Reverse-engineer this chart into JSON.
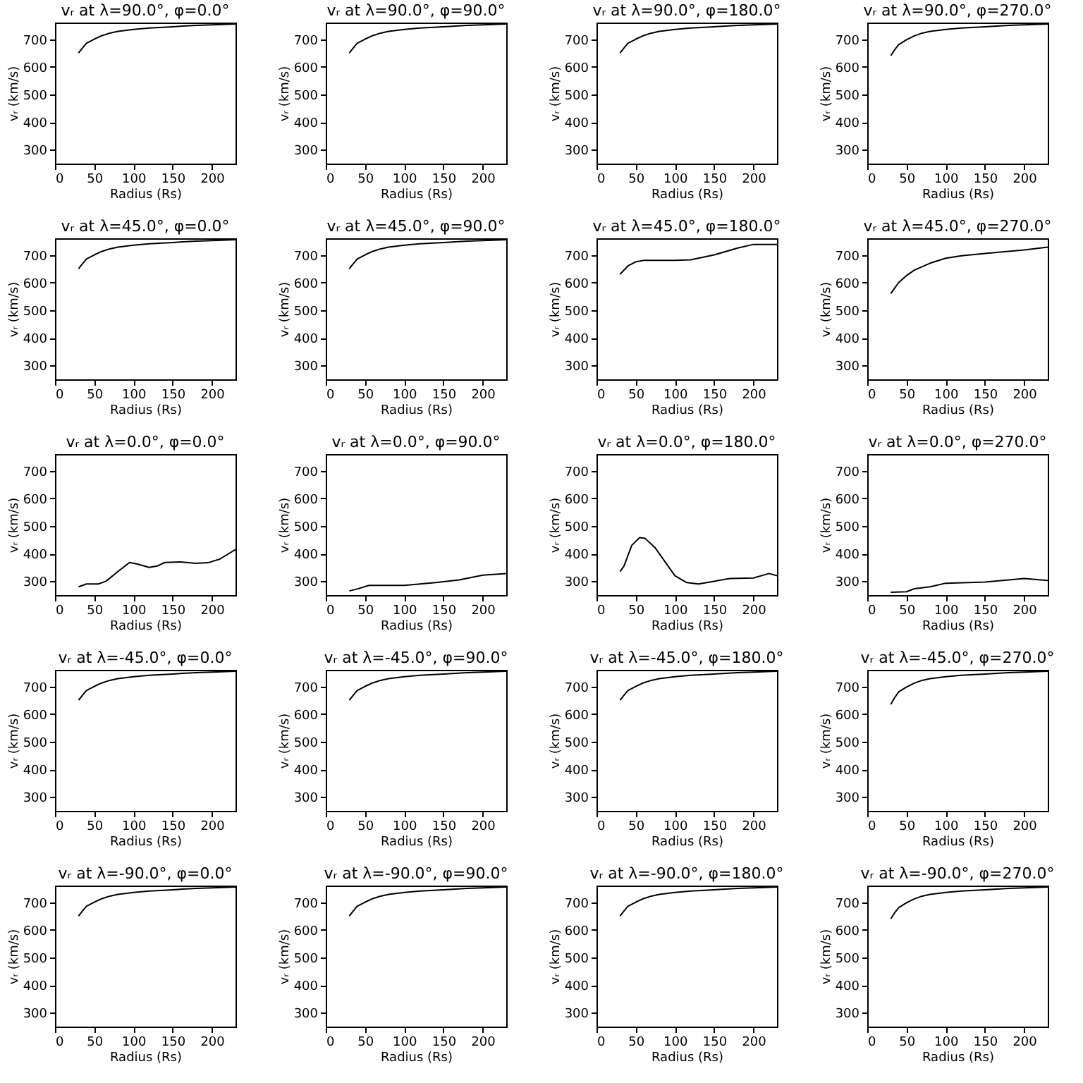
{
  "chart_data": [
    {
      "type": "line",
      "title": "vᵣ at λ=90.0°, φ=0.0°",
      "xlabel": "Radius (Rs)",
      "ylabel": "vᵣ (km/s)",
      "xlim": [
        0,
        230
      ],
      "ylim": [
        250,
        760
      ],
      "xticks": [
        0,
        50,
        100,
        150,
        200
      ],
      "yticks": [
        300,
        400,
        500,
        600,
        700
      ],
      "color": "#000000",
      "x": [
        30,
        35,
        40,
        50,
        60,
        70,
        80,
        100,
        120,
        150,
        180,
        200,
        230
      ],
      "values": [
        650,
        668,
        685,
        700,
        713,
        722,
        728,
        735,
        740,
        745,
        750,
        752,
        755
      ]
    },
    {
      "type": "line",
      "title": "vᵣ at λ=90.0°, φ=90.0°",
      "xlabel": "Radius (Rs)",
      "ylabel": "vᵣ (km/s)",
      "xlim": [
        0,
        230
      ],
      "ylim": [
        250,
        760
      ],
      "xticks": [
        0,
        50,
        100,
        150,
        200
      ],
      "yticks": [
        300,
        400,
        500,
        600,
        700
      ],
      "color": "#000000",
      "x": [
        30,
        35,
        40,
        50,
        60,
        70,
        80,
        100,
        120,
        150,
        180,
        200,
        230
      ],
      "values": [
        650,
        668,
        685,
        700,
        713,
        722,
        728,
        735,
        740,
        745,
        750,
        752,
        755
      ]
    },
    {
      "type": "line",
      "title": "vᵣ at λ=90.0°, φ=180.0°",
      "xlabel": "Radius (Rs)",
      "ylabel": "vᵣ (km/s)",
      "xlim": [
        0,
        230
      ],
      "ylim": [
        250,
        760
      ],
      "xticks": [
        0,
        50,
        100,
        150,
        200
      ],
      "yticks": [
        300,
        400,
        500,
        600,
        700
      ],
      "color": "#000000",
      "x": [
        30,
        35,
        40,
        50,
        60,
        70,
        80,
        100,
        120,
        150,
        180,
        200,
        230
      ],
      "values": [
        650,
        668,
        685,
        700,
        713,
        722,
        728,
        735,
        740,
        745,
        750,
        752,
        755
      ]
    },
    {
      "type": "line",
      "title": "vᵣ at λ=90.0°, φ=270.0°",
      "xlabel": "Radius (Rs)",
      "ylabel": "vᵣ (km/s)",
      "xlim": [
        0,
        230
      ],
      "ylim": [
        250,
        760
      ],
      "xticks": [
        0,
        50,
        100,
        150,
        200
      ],
      "yticks": [
        300,
        400,
        500,
        600,
        700
      ],
      "color": "#000000",
      "x": [
        30,
        35,
        40,
        50,
        60,
        70,
        80,
        100,
        120,
        150,
        180,
        200,
        230
      ],
      "values": [
        640,
        662,
        680,
        698,
        712,
        722,
        728,
        735,
        740,
        745,
        750,
        752,
        755
      ]
    },
    {
      "type": "line",
      "title": "vᵣ at λ=45.0°, φ=0.0°",
      "xlabel": "Radius (Rs)",
      "ylabel": "vᵣ (km/s)",
      "xlim": [
        0,
        230
      ],
      "ylim": [
        250,
        760
      ],
      "xticks": [
        0,
        50,
        100,
        150,
        200
      ],
      "yticks": [
        300,
        400,
        500,
        600,
        700
      ],
      "color": "#000000",
      "x": [
        30,
        35,
        40,
        50,
        60,
        70,
        80,
        100,
        120,
        150,
        180,
        200,
        230
      ],
      "values": [
        650,
        668,
        685,
        700,
        713,
        722,
        728,
        735,
        740,
        745,
        750,
        752,
        755
      ]
    },
    {
      "type": "line",
      "title": "vᵣ at λ=45.0°, φ=90.0°",
      "xlabel": "Radius (Rs)",
      "ylabel": "vᵣ (km/s)",
      "xlim": [
        0,
        230
      ],
      "ylim": [
        250,
        760
      ],
      "xticks": [
        0,
        50,
        100,
        150,
        200
      ],
      "yticks": [
        300,
        400,
        500,
        600,
        700
      ],
      "color": "#000000",
      "x": [
        30,
        35,
        40,
        50,
        60,
        70,
        80,
        100,
        120,
        150,
        180,
        200,
        230
      ],
      "values": [
        650,
        668,
        685,
        700,
        713,
        722,
        728,
        735,
        740,
        745,
        750,
        752,
        755
      ]
    },
    {
      "type": "line",
      "title": "vᵣ at λ=45.0°, φ=180.0°",
      "xlabel": "Radius (Rs)",
      "ylabel": "vᵣ (km/s)",
      "xlim": [
        0,
        230
      ],
      "ylim": [
        250,
        760
      ],
      "xticks": [
        0,
        50,
        100,
        150,
        200
      ],
      "yticks": [
        300,
        400,
        500,
        600,
        700
      ],
      "color": "#000000",
      "x": [
        30,
        40,
        50,
        60,
        80,
        100,
        120,
        150,
        180,
        200,
        230
      ],
      "values": [
        630,
        660,
        675,
        680,
        680,
        680,
        682,
        700,
        725,
        738,
        738
      ]
    },
    {
      "type": "line",
      "title": "vᵣ at λ=45.0°, φ=270.0°",
      "xlabel": "Radius (Rs)",
      "ylabel": "vᵣ (km/s)",
      "xlim": [
        0,
        230
      ],
      "ylim": [
        250,
        760
      ],
      "xticks": [
        0,
        50,
        100,
        150,
        200
      ],
      "yticks": [
        300,
        400,
        500,
        600,
        700
      ],
      "color": "#000000",
      "x": [
        30,
        40,
        50,
        60,
        80,
        100,
        120,
        150,
        200,
        230
      ],
      "values": [
        560,
        600,
        625,
        645,
        670,
        688,
        697,
        705,
        718,
        728
      ]
    },
    {
      "type": "line",
      "title": "vᵣ at λ=0.0°, φ=0.0°",
      "xlabel": "Radius (Rs)",
      "ylabel": "vᵣ (km/s)",
      "xlim": [
        0,
        230
      ],
      "ylim": [
        250,
        760
      ],
      "xticks": [
        0,
        50,
        100,
        150,
        200
      ],
      "yticks": [
        300,
        400,
        500,
        600,
        700
      ],
      "color": "#000000",
      "x": [
        30,
        40,
        55,
        65,
        80,
        95,
        105,
        120,
        130,
        140,
        160,
        180,
        195,
        210,
        230
      ],
      "values": [
        280,
        290,
        290,
        300,
        335,
        368,
        362,
        350,
        355,
        368,
        370,
        365,
        367,
        380,
        415
      ]
    },
    {
      "type": "line",
      "title": "vᵣ at λ=0.0°, φ=90.0°",
      "xlabel": "Radius (Rs)",
      "ylabel": "vᵣ (km/s)",
      "xlim": [
        0,
        230
      ],
      "ylim": [
        250,
        760
      ],
      "xticks": [
        0,
        50,
        100,
        150,
        200
      ],
      "yticks": [
        300,
        400,
        500,
        600,
        700
      ],
      "color": "#000000",
      "x": [
        30,
        40,
        55,
        100,
        140,
        170,
        200,
        230
      ],
      "values": [
        265,
        272,
        285,
        285,
        295,
        305,
        322,
        328
      ]
    },
    {
      "type": "line",
      "title": "vᵣ at λ=0.0°, φ=180.0°",
      "xlabel": "Radius (Rs)",
      "ylabel": "vᵣ (km/s)",
      "xlim": [
        0,
        230
      ],
      "ylim": [
        250,
        760
      ],
      "xticks": [
        0,
        50,
        100,
        150,
        200
      ],
      "yticks": [
        300,
        400,
        500,
        600,
        700
      ],
      "color": "#000000",
      "x": [
        30,
        35,
        45,
        55,
        62,
        75,
        90,
        100,
        115,
        130,
        150,
        170,
        200,
        220,
        230
      ],
      "values": [
        335,
        355,
        430,
        458,
        455,
        420,
        360,
        320,
        295,
        290,
        300,
        310,
        312,
        328,
        320
      ]
    },
    {
      "type": "line",
      "title": "vᵣ at λ=0.0°, φ=270.0°",
      "xlabel": "Radius (Rs)",
      "ylabel": "vᵣ (km/s)",
      "xlim": [
        0,
        230
      ],
      "ylim": [
        250,
        760
      ],
      "xticks": [
        0,
        50,
        100,
        150,
        200
      ],
      "yticks": [
        300,
        400,
        500,
        600,
        700
      ],
      "color": "#000000",
      "x": [
        30,
        50,
        60,
        80,
        100,
        150,
        200,
        230
      ],
      "values": [
        260,
        262,
        273,
        280,
        293,
        297,
        310,
        303
      ]
    },
    {
      "type": "line",
      "title": "vᵣ at λ=-45.0°, φ=0.0°",
      "xlabel": "Radius (Rs)",
      "ylabel": "vᵣ (km/s)",
      "xlim": [
        0,
        230
      ],
      "ylim": [
        250,
        760
      ],
      "xticks": [
        0,
        50,
        100,
        150,
        200
      ],
      "yticks": [
        300,
        400,
        500,
        600,
        700
      ],
      "color": "#000000",
      "x": [
        30,
        35,
        40,
        50,
        60,
        70,
        80,
        100,
        120,
        150,
        180,
        200,
        230
      ],
      "values": [
        650,
        668,
        685,
        700,
        713,
        722,
        728,
        735,
        740,
        745,
        750,
        752,
        755
      ]
    },
    {
      "type": "line",
      "title": "vᵣ at λ=-45.0°, φ=90.0°",
      "xlabel": "Radius (Rs)",
      "ylabel": "vᵣ (km/s)",
      "xlim": [
        0,
        230
      ],
      "ylim": [
        250,
        760
      ],
      "xticks": [
        0,
        50,
        100,
        150,
        200
      ],
      "yticks": [
        300,
        400,
        500,
        600,
        700
      ],
      "color": "#000000",
      "x": [
        30,
        35,
        40,
        50,
        60,
        70,
        80,
        100,
        120,
        150,
        180,
        200,
        230
      ],
      "values": [
        650,
        668,
        685,
        700,
        713,
        722,
        728,
        735,
        740,
        745,
        750,
        752,
        755
      ]
    },
    {
      "type": "line",
      "title": "vᵣ at λ=-45.0°, φ=180.0°",
      "xlabel": "Radius (Rs)",
      "ylabel": "vᵣ (km/s)",
      "xlim": [
        0,
        230
      ],
      "ylim": [
        250,
        760
      ],
      "xticks": [
        0,
        50,
        100,
        150,
        200
      ],
      "yticks": [
        300,
        400,
        500,
        600,
        700
      ],
      "color": "#000000",
      "x": [
        30,
        35,
        40,
        50,
        60,
        70,
        80,
        100,
        120,
        150,
        180,
        200,
        230
      ],
      "values": [
        650,
        668,
        685,
        700,
        713,
        722,
        728,
        735,
        740,
        745,
        750,
        752,
        755
      ]
    },
    {
      "type": "line",
      "title": "vᵣ at λ=-45.0°, φ=270.0°",
      "xlabel": "Radius (Rs)",
      "ylabel": "vᵣ (km/s)",
      "xlim": [
        0,
        230
      ],
      "ylim": [
        250,
        760
      ],
      "xticks": [
        0,
        50,
        100,
        150,
        200
      ],
      "yticks": [
        300,
        400,
        500,
        600,
        700
      ],
      "color": "#000000",
      "x": [
        30,
        35,
        40,
        50,
        60,
        70,
        80,
        100,
        120,
        150,
        180,
        200,
        230
      ],
      "values": [
        635,
        660,
        680,
        698,
        712,
        722,
        728,
        735,
        740,
        745,
        750,
        752,
        755
      ]
    },
    {
      "type": "line",
      "title": "vᵣ at λ=-90.0°, φ=0.0°",
      "xlabel": "Radius (Rs)",
      "ylabel": "vᵣ (km/s)",
      "xlim": [
        0,
        230
      ],
      "ylim": [
        250,
        760
      ],
      "xticks": [
        0,
        50,
        100,
        150,
        200
      ],
      "yticks": [
        300,
        400,
        500,
        600,
        700
      ],
      "color": "#000000",
      "x": [
        30,
        35,
        40,
        50,
        60,
        70,
        80,
        100,
        120,
        150,
        180,
        200,
        230
      ],
      "values": [
        650,
        668,
        685,
        700,
        713,
        722,
        728,
        735,
        740,
        745,
        750,
        752,
        755
      ]
    },
    {
      "type": "line",
      "title": "vᵣ at λ=-90.0°, φ=90.0°",
      "xlabel": "Radius (Rs)",
      "ylabel": "vᵣ (km/s)",
      "xlim": [
        0,
        230
      ],
      "ylim": [
        250,
        760
      ],
      "xticks": [
        0,
        50,
        100,
        150,
        200
      ],
      "yticks": [
        300,
        400,
        500,
        600,
        700
      ],
      "color": "#000000",
      "x": [
        30,
        35,
        40,
        50,
        60,
        70,
        80,
        100,
        120,
        150,
        180,
        200,
        230
      ],
      "values": [
        650,
        668,
        685,
        700,
        713,
        722,
        728,
        735,
        740,
        745,
        750,
        752,
        755
      ]
    },
    {
      "type": "line",
      "title": "vᵣ at λ=-90.0°, φ=180.0°",
      "xlabel": "Radius (Rs)",
      "ylabel": "vᵣ (km/s)",
      "xlim": [
        0,
        230
      ],
      "ylim": [
        250,
        760
      ],
      "xticks": [
        0,
        50,
        100,
        150,
        200
      ],
      "yticks": [
        300,
        400,
        500,
        600,
        700
      ],
      "color": "#000000",
      "x": [
        30,
        35,
        40,
        50,
        60,
        70,
        80,
        100,
        120,
        150,
        180,
        200,
        230
      ],
      "values": [
        650,
        668,
        685,
        700,
        713,
        722,
        728,
        735,
        740,
        745,
        750,
        752,
        755
      ]
    },
    {
      "type": "line",
      "title": "vᵣ at λ=-90.0°, φ=270.0°",
      "xlabel": "Radius (Rs)",
      "ylabel": "vᵣ (km/s)",
      "xlim": [
        0,
        230
      ],
      "ylim": [
        250,
        760
      ],
      "xticks": [
        0,
        50,
        100,
        150,
        200
      ],
      "yticks": [
        300,
        400,
        500,
        600,
        700
      ],
      "color": "#000000",
      "x": [
        30,
        35,
        40,
        50,
        60,
        70,
        80,
        100,
        120,
        150,
        180,
        200,
        230
      ],
      "values": [
        640,
        662,
        680,
        698,
        712,
        722,
        728,
        735,
        740,
        745,
        750,
        752,
        755
      ]
    }
  ]
}
